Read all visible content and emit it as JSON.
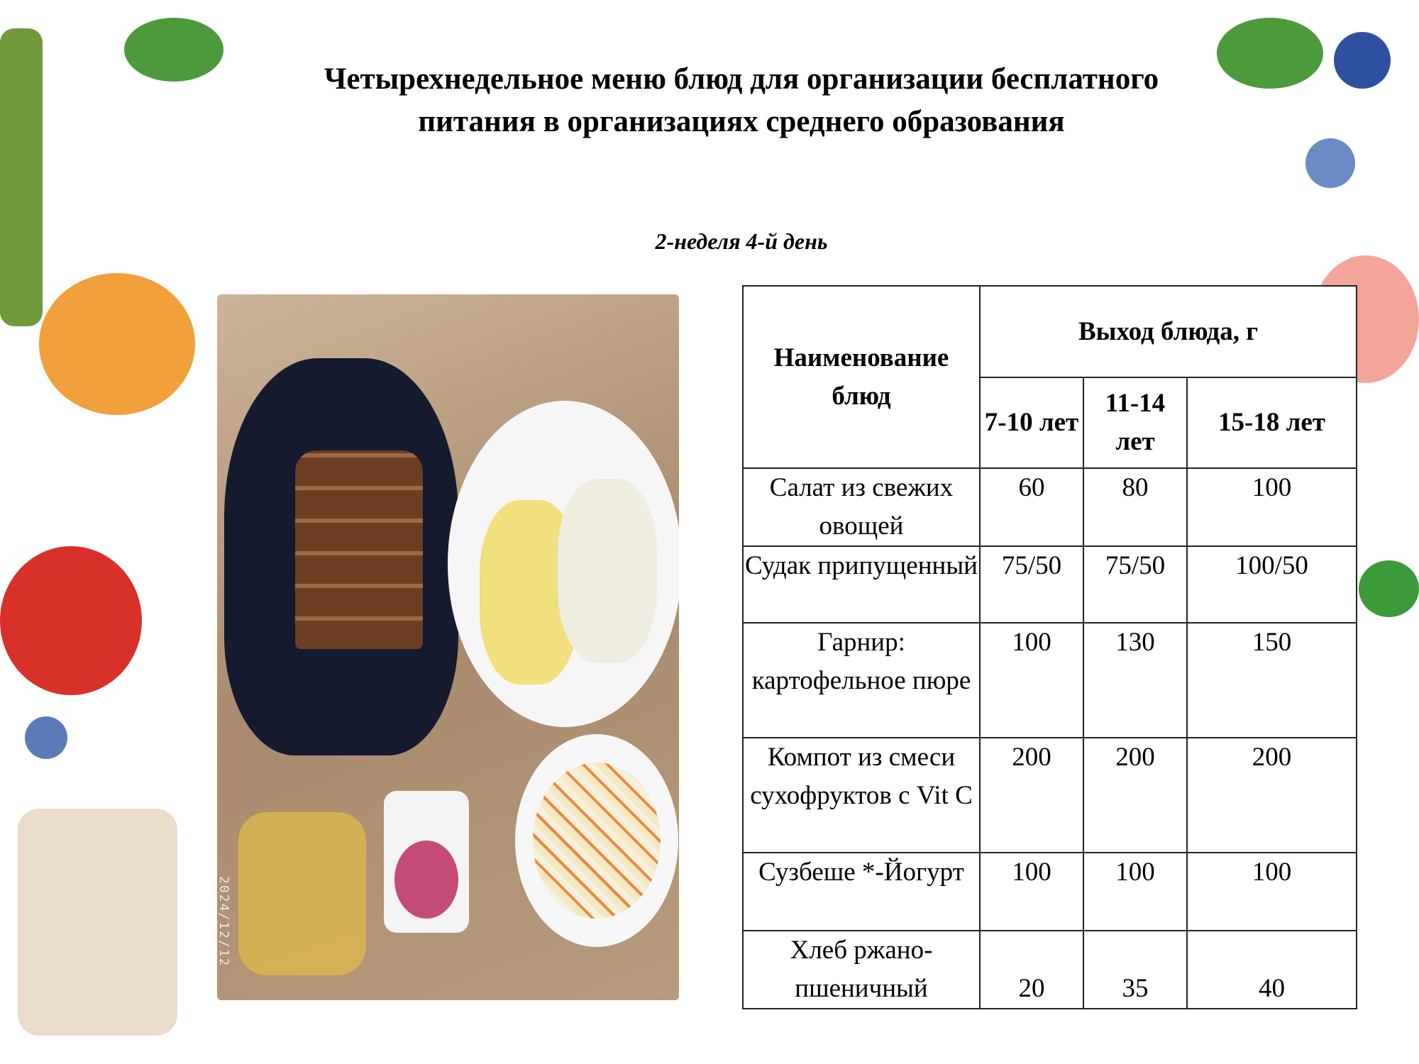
{
  "title": "Четырехнедельное меню блюд для организации бесплатного питания в организациях среднего образования",
  "subtitle": "2-неделя 4-й день",
  "photo": {
    "date_stamp": "2024/12/12"
  },
  "table": {
    "header_name": "Наименование блюд",
    "header_yield": "Выход блюда, г",
    "age_groups": [
      "7-10 лет",
      "11-14 лет",
      "15-18 лет"
    ],
    "rows": [
      {
        "name": "Салат из свежих овощей",
        "values": [
          "60",
          "80",
          "100"
        ]
      },
      {
        "name": "Судак припущенный",
        "values": [
          "75/50",
          "75/50",
          "100/50"
        ]
      },
      {
        "name": "Гарнир: картофельное пюре",
        "values": [
          "100",
          "130",
          "150"
        ]
      },
      {
        "name": "Компот из смеси сухофруктов с Vit C",
        "values": [
          "200",
          "200",
          "200"
        ]
      },
      {
        "name": "Сузбеше *-Йогурт",
        "values": [
          "100",
          "100",
          "100"
        ]
      },
      {
        "name": "Хлеб ржано-пшеничный",
        "values": [
          "20",
          "35",
          "40"
        ]
      }
    ]
  }
}
